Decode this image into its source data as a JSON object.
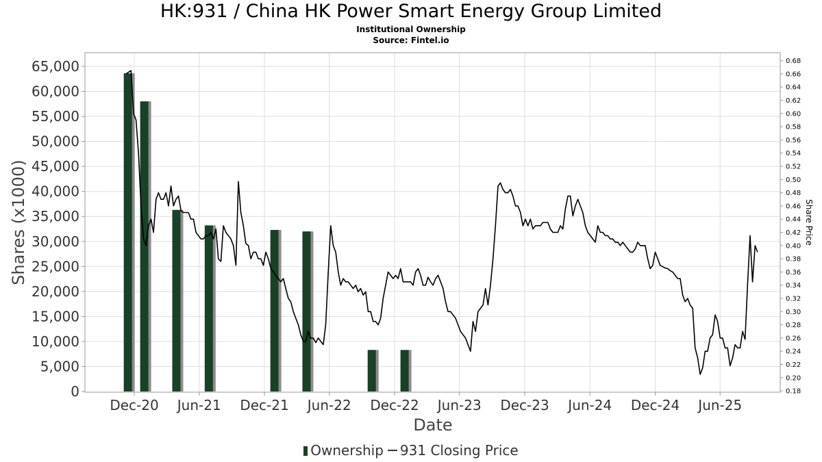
{
  "title": "HK:931 / China HK Power Smart Energy Group Limited",
  "subtitle1": "Institutional Ownership",
  "subtitle2": "Source: Fintel.io",
  "colors": {
    "bar": "#1a4027",
    "bar_shadow": "#8c8c8c",
    "line": "#000000",
    "grid": "#dddddd"
  },
  "chart_data": {
    "type": "bar",
    "xlabel": "Date",
    "ylabel": "Shares (x1000)",
    "y2label": "Share Price",
    "x_ticks": [
      "Dec-20",
      "Jun-21",
      "Dec-21",
      "Jun-22",
      "Dec-22",
      "Jun-23",
      "Dec-23",
      "Jun-24",
      "Dec-24",
      "Jun-25"
    ],
    "y_ticks": [
      "0",
      "5,000",
      "10,000",
      "15,000",
      "20,000",
      "25,000",
      "30,000",
      "35,000",
      "40,000",
      "45,000",
      "50,000",
      "55,000",
      "60,000",
      "65,000"
    ],
    "y2_ticks": [
      "0.18",
      "0.20",
      "0.22",
      "0.24",
      "0.26",
      "0.28",
      "0.30",
      "0.32",
      "0.34",
      "0.36",
      "0.38",
      "0.40",
      "0.42",
      "0.44",
      "0.46",
      "0.48",
      "0.50",
      "0.52",
      "0.54",
      "0.56",
      "0.58",
      "0.60",
      "0.62",
      "0.64",
      "0.66",
      "0.68"
    ],
    "ylim": [
      0,
      66000
    ],
    "y2lim": [
      0.178,
      0.692
    ],
    "grid": true,
    "legend": "bottom-center",
    "series": [
      {
        "name": "Ownership",
        "type": "bar",
        "points": [
          {
            "x": "2020-11-15",
            "y": 63600
          },
          {
            "x": "2020-12-31",
            "y": 58000
          },
          {
            "x": "2021-03-31",
            "y": 36300
          },
          {
            "x": "2021-06-30",
            "y": 33200
          },
          {
            "x": "2021-12-31",
            "y": 32300
          },
          {
            "x": "2022-03-31",
            "y": 32000
          },
          {
            "x": "2022-09-30",
            "y": 8300
          },
          {
            "x": "2022-12-31",
            "y": 8300
          }
        ]
      },
      {
        "name": "931 Closing Price",
        "type": "line",
        "points": [
          [
            "2020-11-08",
            0.66
          ],
          [
            "2020-11-22",
            0.665
          ],
          [
            "2020-11-29",
            0.6
          ],
          [
            "2020-12-06",
            0.59
          ],
          [
            "2020-12-13",
            0.54
          ],
          [
            "2020-12-20",
            0.46
          ],
          [
            "2020-12-27",
            0.41
          ],
          [
            "2021-01-03",
            0.4
          ],
          [
            "2021-01-10",
            0.43
          ],
          [
            "2021-01-17",
            0.44
          ],
          [
            "2021-01-24",
            0.42
          ],
          [
            "2021-01-31",
            0.47
          ],
          [
            "2021-02-07",
            0.48
          ],
          [
            "2021-02-14",
            0.47
          ],
          [
            "2021-02-21",
            0.47
          ],
          [
            "2021-02-28",
            0.48
          ],
          [
            "2021-03-07",
            0.46
          ],
          [
            "2021-03-14",
            0.49
          ],
          [
            "2021-03-21",
            0.46
          ],
          [
            "2021-03-28",
            0.47
          ],
          [
            "2021-04-04",
            0.475
          ],
          [
            "2021-04-11",
            0.453
          ],
          [
            "2021-04-18",
            0.45
          ],
          [
            "2021-04-25",
            0.45
          ],
          [
            "2021-05-02",
            0.45
          ],
          [
            "2021-05-09",
            0.44
          ],
          [
            "2021-05-16",
            0.44
          ],
          [
            "2021-05-23",
            0.42
          ],
          [
            "2021-05-30",
            0.415
          ],
          [
            "2021-06-06",
            0.41
          ],
          [
            "2021-06-13",
            0.41
          ],
          [
            "2021-06-20",
            0.415
          ],
          [
            "2021-06-27",
            0.415
          ],
          [
            "2021-07-04",
            0.42
          ],
          [
            "2021-07-11",
            0.41
          ],
          [
            "2021-07-18",
            0.425
          ],
          [
            "2021-07-25",
            0.38
          ],
          [
            "2021-08-01",
            0.376
          ],
          [
            "2021-08-08",
            0.43
          ],
          [
            "2021-08-15",
            0.42
          ],
          [
            "2021-08-22",
            0.415
          ],
          [
            "2021-08-29",
            0.41
          ],
          [
            "2021-09-05",
            0.4
          ],
          [
            "2021-09-12",
            0.37
          ],
          [
            "2021-09-19",
            0.497
          ],
          [
            "2021-09-26",
            0.45
          ],
          [
            "2021-10-03",
            0.43
          ],
          [
            "2021-10-10",
            0.403
          ],
          [
            "2021-10-17",
            0.4
          ],
          [
            "2021-10-24",
            0.38
          ],
          [
            "2021-10-31",
            0.39
          ],
          [
            "2021-11-07",
            0.39
          ],
          [
            "2021-11-14",
            0.38
          ],
          [
            "2021-11-21",
            0.38
          ],
          [
            "2021-11-28",
            0.37
          ],
          [
            "2021-12-05",
            0.39
          ],
          [
            "2021-12-12",
            0.38
          ],
          [
            "2021-12-19",
            0.365
          ],
          [
            "2021-12-26",
            0.36
          ],
          [
            "2022-01-02",
            0.355
          ],
          [
            "2022-01-09",
            0.35
          ],
          [
            "2022-01-16",
            0.345
          ],
          [
            "2022-01-23",
            0.35
          ],
          [
            "2022-01-30",
            0.335
          ],
          [
            "2022-02-06",
            0.32
          ],
          [
            "2022-02-13",
            0.315
          ],
          [
            "2022-02-20",
            0.3
          ],
          [
            "2022-02-27",
            0.29
          ],
          [
            "2022-03-06",
            0.28
          ],
          [
            "2022-03-13",
            0.265
          ],
          [
            "2022-03-20",
            0.255
          ],
          [
            "2022-03-27",
            0.255
          ],
          [
            "2022-04-03",
            0.27
          ],
          [
            "2022-04-10",
            0.26
          ],
          [
            "2022-04-17",
            0.26
          ],
          [
            "2022-04-24",
            0.253
          ],
          [
            "2022-05-01",
            0.26
          ],
          [
            "2022-05-08",
            0.255
          ],
          [
            "2022-05-15",
            0.25
          ],
          [
            "2022-05-22",
            0.28
          ],
          [
            "2022-05-29",
            0.36
          ],
          [
            "2022-06-05",
            0.43
          ],
          [
            "2022-06-12",
            0.4
          ],
          [
            "2022-06-19",
            0.39
          ],
          [
            "2022-06-26",
            0.36
          ],
          [
            "2022-07-03",
            0.34
          ],
          [
            "2022-07-10",
            0.35
          ],
          [
            "2022-07-17",
            0.345
          ],
          [
            "2022-07-24",
            0.345
          ],
          [
            "2022-07-31",
            0.34
          ],
          [
            "2022-08-07",
            0.335
          ],
          [
            "2022-08-14",
            0.34
          ],
          [
            "2022-08-21",
            0.33
          ],
          [
            "2022-08-28",
            0.335
          ],
          [
            "2022-09-04",
            0.325
          ],
          [
            "2022-09-11",
            0.33
          ],
          [
            "2022-09-18",
            0.3
          ],
          [
            "2022-09-25",
            0.3
          ],
          [
            "2022-10-02",
            0.285
          ],
          [
            "2022-10-09",
            0.285
          ],
          [
            "2022-10-16",
            0.28
          ],
          [
            "2022-10-23",
            0.29
          ],
          [
            "2022-10-30",
            0.32
          ],
          [
            "2022-11-06",
            0.34
          ],
          [
            "2022-11-13",
            0.36
          ],
          [
            "2022-11-20",
            0.355
          ],
          [
            "2022-11-27",
            0.35
          ],
          [
            "2022-12-04",
            0.355
          ],
          [
            "2022-12-11",
            0.35
          ],
          [
            "2022-12-18",
            0.365
          ],
          [
            "2022-12-25",
            0.345
          ],
          [
            "2023-01-01",
            0.345
          ],
          [
            "2023-01-08",
            0.345
          ],
          [
            "2023-01-15",
            0.345
          ],
          [
            "2023-01-22",
            0.34
          ],
          [
            "2023-01-29",
            0.36
          ],
          [
            "2023-02-05",
            0.365
          ],
          [
            "2023-02-12",
            0.355
          ],
          [
            "2023-02-19",
            0.34
          ],
          [
            "2023-02-26",
            0.34
          ],
          [
            "2023-03-05",
            0.352
          ],
          [
            "2023-03-12",
            0.345
          ],
          [
            "2023-03-19",
            0.34
          ],
          [
            "2023-03-26",
            0.35
          ],
          [
            "2023-04-02",
            0.355
          ],
          [
            "2023-04-09",
            0.345
          ],
          [
            "2023-04-16",
            0.335
          ],
          [
            "2023-04-23",
            0.315
          ],
          [
            "2023-04-30",
            0.3
          ],
          [
            "2023-05-07",
            0.3
          ],
          [
            "2023-05-14",
            0.295
          ],
          [
            "2023-05-21",
            0.29
          ],
          [
            "2023-05-28",
            0.28
          ],
          [
            "2023-06-04",
            0.27
          ],
          [
            "2023-06-11",
            0.265
          ],
          [
            "2023-06-18",
            0.26
          ],
          [
            "2023-06-25",
            0.25
          ],
          [
            "2023-07-02",
            0.24
          ],
          [
            "2023-07-09",
            0.285
          ],
          [
            "2023-07-16",
            0.27
          ],
          [
            "2023-07-23",
            0.3
          ],
          [
            "2023-07-30",
            0.305
          ],
          [
            "2023-08-06",
            0.31
          ],
          [
            "2023-08-13",
            0.335
          ],
          [
            "2023-08-20",
            0.31
          ],
          [
            "2023-08-27",
            0.34
          ],
          [
            "2023-09-03",
            0.38
          ],
          [
            "2023-09-10",
            0.43
          ],
          [
            "2023-09-17",
            0.49
          ],
          [
            "2023-09-24",
            0.495
          ],
          [
            "2023-10-01",
            0.485
          ],
          [
            "2023-10-08",
            0.48
          ],
          [
            "2023-10-15",
            0.48
          ],
          [
            "2023-10-22",
            0.485
          ],
          [
            "2023-10-29",
            0.475
          ],
          [
            "2023-11-05",
            0.46
          ],
          [
            "2023-11-12",
            0.46
          ],
          [
            "2023-11-19",
            0.45
          ],
          [
            "2023-11-26",
            0.43
          ],
          [
            "2023-12-03",
            0.44
          ],
          [
            "2023-12-10",
            0.43
          ],
          [
            "2023-12-17",
            0.44
          ],
          [
            "2023-12-24",
            0.425
          ],
          [
            "2023-12-31",
            0.43
          ],
          [
            "2024-01-07",
            0.43
          ],
          [
            "2024-01-14",
            0.43
          ],
          [
            "2024-01-21",
            0.435
          ],
          [
            "2024-01-28",
            0.435
          ],
          [
            "2024-02-04",
            0.435
          ],
          [
            "2024-02-11",
            0.425
          ],
          [
            "2024-02-18",
            0.42
          ],
          [
            "2024-02-25",
            0.42
          ],
          [
            "2024-03-03",
            0.42
          ],
          [
            "2024-03-10",
            0.43
          ],
          [
            "2024-03-17",
            0.425
          ],
          [
            "2024-03-24",
            0.455
          ],
          [
            "2024-03-31",
            0.475
          ],
          [
            "2024-04-07",
            0.475
          ],
          [
            "2024-04-14",
            0.445
          ],
          [
            "2024-04-21",
            0.46
          ],
          [
            "2024-04-28",
            0.47
          ],
          [
            "2024-05-05",
            0.46
          ],
          [
            "2024-05-12",
            0.45
          ],
          [
            "2024-05-19",
            0.43
          ],
          [
            "2024-05-26",
            0.42
          ],
          [
            "2024-06-02",
            0.415
          ],
          [
            "2024-06-09",
            0.41
          ],
          [
            "2024-06-16",
            0.405
          ],
          [
            "2024-06-23",
            0.43
          ],
          [
            "2024-06-30",
            0.42
          ],
          [
            "2024-07-07",
            0.42
          ],
          [
            "2024-07-14",
            0.415
          ],
          [
            "2024-07-21",
            0.415
          ],
          [
            "2024-07-28",
            0.41
          ],
          [
            "2024-08-04",
            0.41
          ],
          [
            "2024-08-11",
            0.405
          ],
          [
            "2024-08-18",
            0.405
          ],
          [
            "2024-08-25",
            0.4
          ],
          [
            "2024-09-01",
            0.405
          ],
          [
            "2024-09-08",
            0.4
          ],
          [
            "2024-09-15",
            0.395
          ],
          [
            "2024-09-22",
            0.39
          ],
          [
            "2024-09-29",
            0.39
          ],
          [
            "2024-10-06",
            0.395
          ],
          [
            "2024-10-13",
            0.405
          ],
          [
            "2024-10-20",
            0.4
          ],
          [
            "2024-10-27",
            0.4
          ],
          [
            "2024-11-03",
            0.4
          ],
          [
            "2024-11-10",
            0.38
          ],
          [
            "2024-11-17",
            0.365
          ],
          [
            "2024-11-24",
            0.37
          ],
          [
            "2024-12-01",
            0.39
          ],
          [
            "2024-12-08",
            0.38
          ],
          [
            "2024-12-15",
            0.37
          ],
          [
            "2024-12-22",
            0.368
          ],
          [
            "2024-12-29",
            0.366
          ],
          [
            "2025-01-05",
            0.365
          ],
          [
            "2025-01-12",
            0.362
          ],
          [
            "2025-01-19",
            0.36
          ],
          [
            "2025-01-26",
            0.355
          ],
          [
            "2025-02-02",
            0.35
          ],
          [
            "2025-02-09",
            0.35
          ],
          [
            "2025-02-16",
            0.325
          ],
          [
            "2025-02-23",
            0.315
          ],
          [
            "2025-03-02",
            0.32
          ],
          [
            "2025-03-09",
            0.31
          ],
          [
            "2025-03-16",
            0.305
          ],
          [
            "2025-03-23",
            0.245
          ],
          [
            "2025-03-30",
            0.23
          ],
          [
            "2025-04-06",
            0.205
          ],
          [
            "2025-04-13",
            0.215
          ],
          [
            "2025-04-20",
            0.24
          ],
          [
            "2025-04-27",
            0.24
          ],
          [
            "2025-05-04",
            0.26
          ],
          [
            "2025-05-11",
            0.265
          ],
          [
            "2025-05-18",
            0.295
          ],
          [
            "2025-05-25",
            0.285
          ],
          [
            "2025-06-01",
            0.26
          ],
          [
            "2025-06-08",
            0.26
          ],
          [
            "2025-06-15",
            0.245
          ],
          [
            "2025-06-22",
            0.245
          ],
          [
            "2025-06-29",
            0.218
          ],
          [
            "2025-07-06",
            0.23
          ],
          [
            "2025-07-13",
            0.25
          ],
          [
            "2025-07-20",
            0.245
          ],
          [
            "2025-07-27",
            0.245
          ],
          [
            "2025-08-03",
            0.27
          ],
          [
            "2025-08-10",
            0.258
          ],
          [
            "2025-08-17",
            0.34
          ],
          [
            "2025-08-24",
            0.415
          ],
          [
            "2025-08-31",
            0.345
          ],
          [
            "2025-09-07",
            0.4
          ],
          [
            "2025-09-14",
            0.39
          ]
        ]
      }
    ]
  },
  "legend_items": [
    "Ownership",
    "931 Closing Price"
  ]
}
